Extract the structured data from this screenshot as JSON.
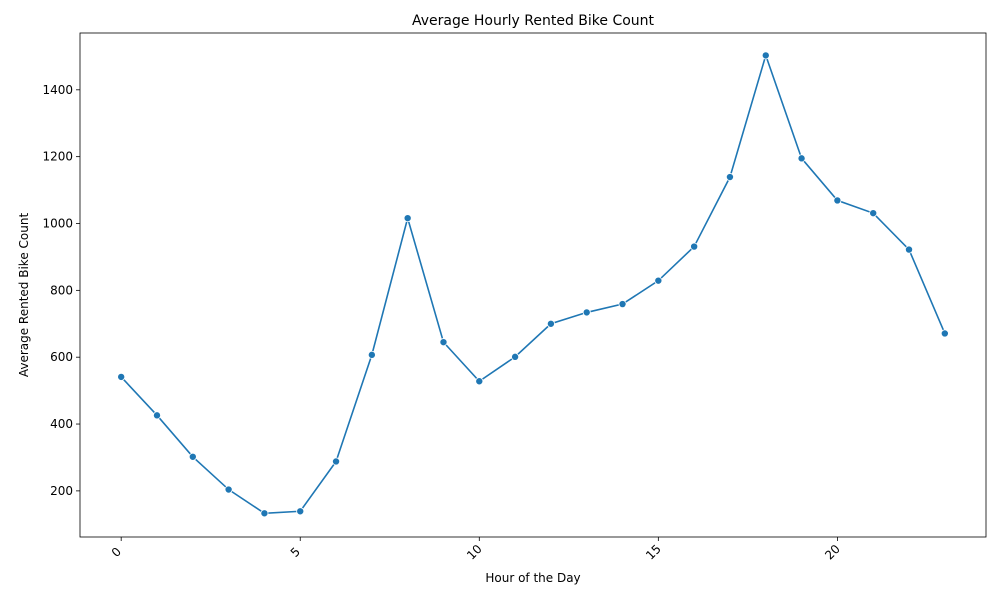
{
  "chart_data": {
    "type": "line",
    "title": "Average Hourly Rented Bike Count",
    "xlabel": "Hour of the Day",
    "ylabel": "Average Rented Bike Count",
    "xlim": [
      -1.15,
      24.15
    ],
    "ylim": [
      62,
      1570
    ],
    "xticks": [
      0,
      5,
      10,
      15,
      20
    ],
    "yticks": [
      200,
      400,
      600,
      800,
      1000,
      1200,
      1400
    ],
    "xtick_rotation": -45,
    "grid": false,
    "series_color": "#1f77b4",
    "series": [
      {
        "x": [
          0,
          1,
          2,
          3,
          4,
          5,
          6,
          7,
          8,
          9,
          10,
          11,
          12,
          13,
          14,
          15,
          16,
          17,
          18,
          19,
          20,
          21,
          22,
          23
        ],
        "values": [
          541,
          426,
          302,
          204,
          133,
          139,
          288,
          607,
          1016,
          645,
          528,
          601,
          700,
          734,
          759,
          829,
          931,
          1139,
          1503,
          1195,
          1069,
          1031,
          922,
          671
        ]
      }
    ]
  }
}
